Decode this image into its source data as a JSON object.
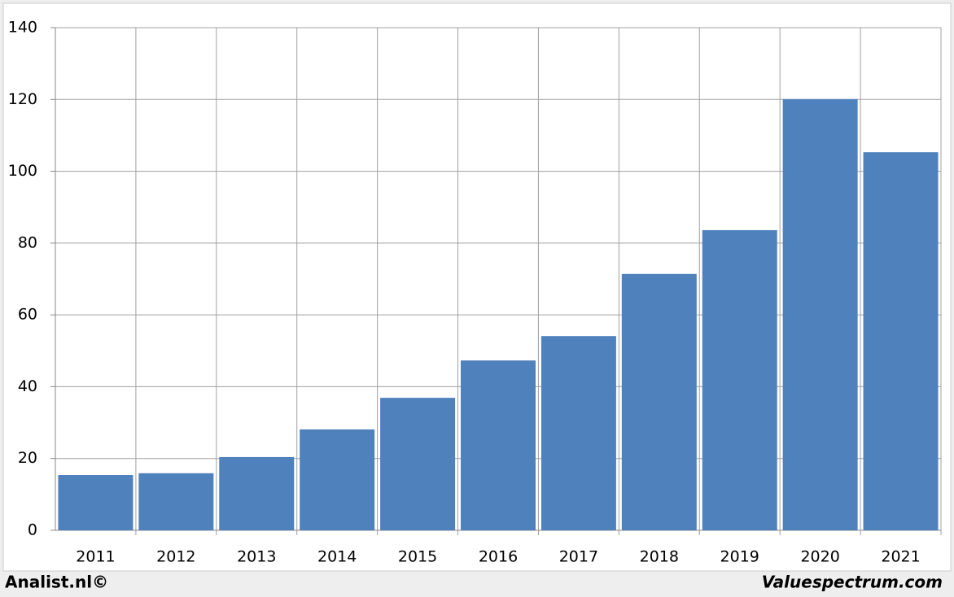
{
  "chart_data": {
    "type": "bar",
    "categories": [
      "2011",
      "2012",
      "2013",
      "2014",
      "2015",
      "2016",
      "2017",
      "2018",
      "2019",
      "2020",
      "2021"
    ],
    "values": [
      15.4,
      15.9,
      20.4,
      28.1,
      36.9,
      47.3,
      54.1,
      71.4,
      83.6,
      120.1,
      105.3
    ],
    "color": "#4f81bd",
    "ylim": [
      0,
      140
    ],
    "yticks": [
      0,
      20,
      40,
      60,
      80,
      100,
      120,
      140
    ],
    "grid": true,
    "source_left": "Analist.nl©",
    "source_right": "Valuespectrum.com"
  }
}
